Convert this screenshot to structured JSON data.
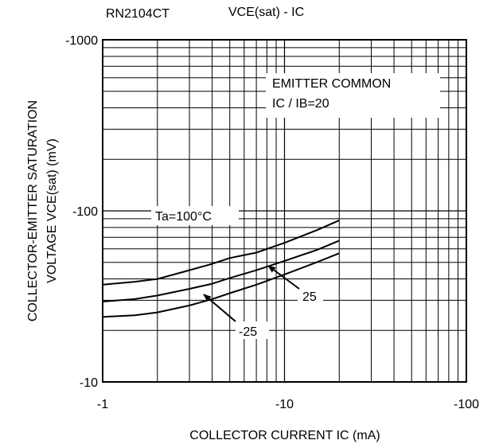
{
  "header": {
    "part_number": "RN2104CT",
    "graph_title": "VCE(sat) - IC"
  },
  "chart_data": {
    "type": "line",
    "title": "VCE(sat) - IC",
    "xlabel": "COLLECTOR CURRENT  IC (mA)",
    "ylabel_line1": "COLLECTOR-EMITTER SATURATION",
    "ylabel_line2": "VOLTAGE  VCE(sat) (mV)",
    "x_scale": "log",
    "y_scale": "log",
    "xlim": [
      -1,
      -100
    ],
    "ylim": [
      -10,
      -1000
    ],
    "grid": true,
    "x_ticks": [
      {
        "value": -1,
        "label": "-1"
      },
      {
        "value": -10,
        "label": "-10"
      },
      {
        "value": -100,
        "label": "-100"
      }
    ],
    "y_ticks": [
      {
        "value": -10,
        "label": "-10"
      },
      {
        "value": -100,
        "label": "-100"
      },
      {
        "value": -1000,
        "label": "-1000"
      }
    ],
    "condition_box": {
      "line1": "EMITTER COMMON",
      "line2": "IC / IB=20"
    },
    "series": [
      {
        "name": "Ta=100°C",
        "x": [
          -1,
          -1.5,
          -2,
          -3,
          -4,
          -5,
          -7,
          -10,
          -15,
          -20
        ],
        "values": [
          -37,
          -38.5,
          -40,
          -45,
          -49,
          -53,
          -57,
          -65,
          -77,
          -88
        ]
      },
      {
        "name": "25",
        "x": [
          -1,
          -1.5,
          -2,
          -3,
          -4,
          -5,
          -7,
          -10,
          -15,
          -20
        ],
        "values": [
          -29.5,
          -30.5,
          -32,
          -35,
          -37.5,
          -40.5,
          -45,
          -51,
          -59,
          -67
        ]
      },
      {
        "name": "-25",
        "x": [
          -1,
          -1.5,
          -2,
          -3,
          -4,
          -5,
          -7,
          -10,
          -15,
          -20
        ],
        "values": [
          -24,
          -24.5,
          -25.5,
          -28,
          -30.5,
          -33,
          -37,
          -42.5,
          -50,
          -56.5
        ]
      }
    ],
    "annotations": [
      {
        "text": "Ta=100°C",
        "series": "Ta=100°C"
      },
      {
        "text": "25",
        "series": "25",
        "arrow_to": {
          "x": -8.6,
          "y": -47.5
        }
      },
      {
        "text": "-25",
        "series": "-25",
        "arrow_to": {
          "x": -3.75,
          "y": -29.5
        }
      }
    ]
  }
}
